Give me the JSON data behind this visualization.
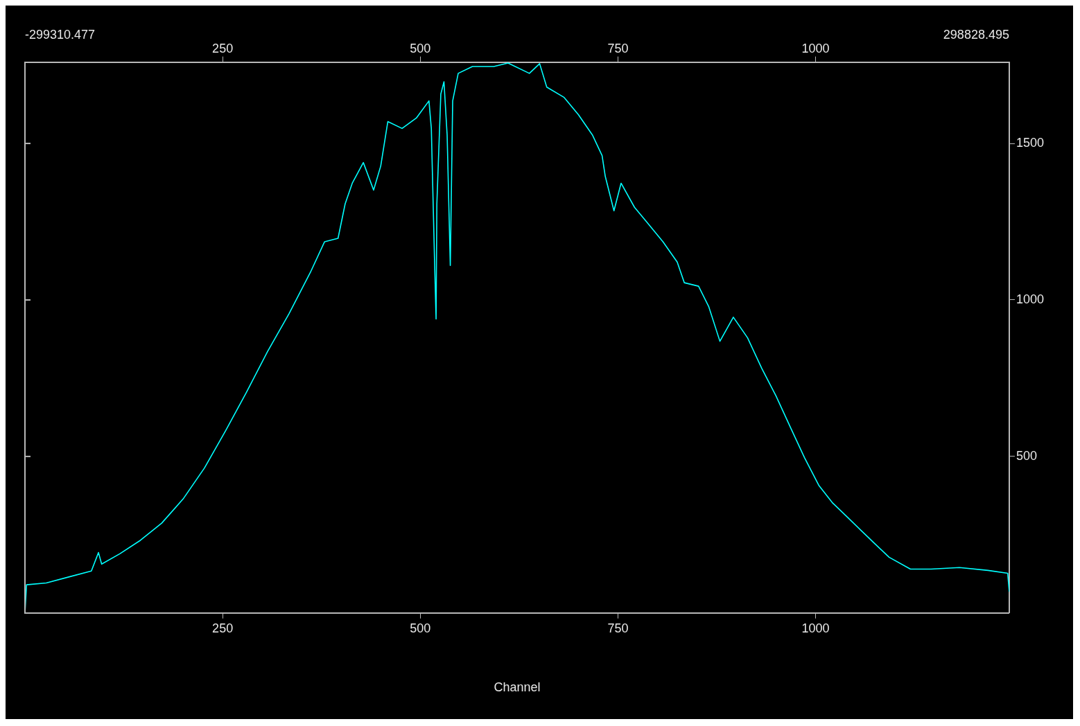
{
  "chart_data": {
    "type": "line",
    "xlabel": "Channel",
    "annotations": [
      "-299310.477",
      "298828.495"
    ],
    "x": [
      0,
      2,
      27,
      57,
      84,
      93,
      97,
      120,
      146,
      173,
      200,
      227,
      254,
      280,
      307,
      334,
      361,
      379,
      396,
      405,
      414,
      428,
      441,
      450,
      459,
      477,
      495,
      511,
      514,
      518,
      520,
      521,
      526,
      530,
      534,
      538,
      541,
      548,
      566,
      593,
      611,
      638,
      651,
      660,
      682,
      700,
      718,
      730,
      734,
      745,
      754,
      771,
      789,
      807,
      825,
      834,
      852,
      865,
      879,
      896,
      914,
      932,
      950,
      968,
      986,
      1004,
      1021,
      1039,
      1057,
      1075,
      1093,
      1120,
      1146,
      1182,
      1218,
      1243,
      1245
    ],
    "series": [
      {
        "color": "#00ffff",
        "values": [
          0,
          90,
          96,
          116,
          134,
          193,
          156,
          189,
          232,
          287,
          364,
          463,
          583,
          704,
          836,
          956,
          1088,
          1186,
          1197,
          1307,
          1373,
          1439,
          1351,
          1428,
          1570,
          1548,
          1581,
          1636,
          1548,
          1132,
          939,
          1307,
          1658,
          1697,
          1526,
          1110,
          1636,
          1724,
          1746,
          1746,
          1757,
          1724,
          1755,
          1680,
          1647,
          1592,
          1526,
          1461,
          1395,
          1285,
          1373,
          1296,
          1241,
          1186,
          1121,
          1055,
          1044,
          978,
          868,
          945,
          879,
          781,
          693,
          594,
          496,
          408,
          353,
          309,
          265,
          221,
          178,
          140,
          140,
          145,
          136,
          127,
          68
        ]
      }
    ],
    "xlim": [
      0,
      1245
    ],
    "xticks": [
      250,
      500,
      750,
      1000
    ],
    "x2lim": [
      0,
      1245
    ],
    "x2ticks": [
      250,
      500,
      750,
      1000
    ],
    "ylim": [
      0,
      1760
    ],
    "yticks": [
      500,
      1000,
      1500
    ],
    "grid": false,
    "legend": false,
    "marker": "none",
    "line_style": "solid"
  }
}
